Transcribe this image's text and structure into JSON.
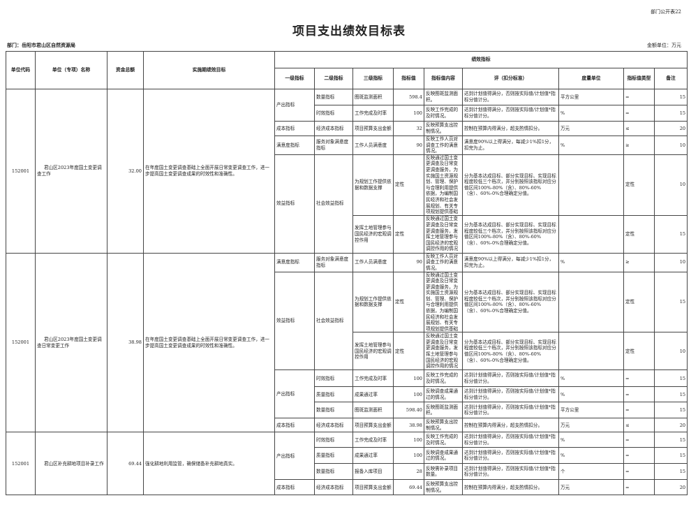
{
  "form_no": "部门公开表22",
  "title": "项目支出绩效目标表",
  "department": "部门：岳阳市君山区自然资源局",
  "amount_unit": "金额单位：万元",
  "headers": {
    "code": "单位代码",
    "name": "单位（专项）名称",
    "amount": "资金总额",
    "goal": "实施期绩效目标",
    "indicators": "绩效指标",
    "sub": [
      "一级指标",
      "二级指标",
      "三级指标",
      "指标值",
      "指标值内容",
      "评（扣分标准）",
      "度量单位",
      "指标值类型",
      "备注"
    ]
  },
  "projects": [
    {
      "code": "152001",
      "name": "君山区2023年度国土变更调查工作",
      "amount": "32.00",
      "goal": "在年度国土变更调查基础上全面开展日常变更调查工作，进一步提高国土变更调查成果的时效性和准确性。",
      "groups": [
        {
          "level1": "产出指标",
          "rows": [
            {
              "level2": "数量指标",
              "level3": "图斑监测面积",
              "value": "598.4",
              "content": "反映图斑监测面积。",
              "standard": "达到计划值得满分，否则按实际值/计划值*指标分值计分。",
              "unit": "平方公里",
              "type": "=",
              "weight": "15"
            },
            {
              "level2": "时效指标",
              "level3": "工作完成及时率",
              "value": "100",
              "content": "反映工作完成的及时情况。",
              "standard": "达到计划值得满分，否则按实际值/计划值*指标分值计分。",
              "unit": "%",
              "type": "=",
              "weight": "15"
            }
          ]
        },
        {
          "level1": "成本指标",
          "rows": [
            {
              "level2": "经济成本指标",
              "level3": "项目预算支出金额",
              "value": "32",
              "content": "反映预算支出控制情况。",
              "standard": "控制在预算内得满分，超支酌情扣分。",
              "unit": "万元",
              "type": "≤",
              "weight": "20"
            }
          ]
        },
        {
          "level1": "满意度指标",
          "rows": [
            {
              "level2": "服务对象满意度指标",
              "level3": "工作人员满意度",
              "value": "90",
              "content": "反映工作人员对调查工作的满意情况。",
              "standard": "满意度90%以上得满分，每减少1%扣1分，扣完为止。",
              "unit": "%",
              "type": "≥",
              "weight": "10"
            }
          ]
        },
        {
          "level1": "效益指标",
          "level2_span": "社会效益指标",
          "rows": [
            {
              "level3": "为规划工作提供依据和数据支撑",
              "value": "定性",
              "content": "反映通过国土变更调查及日常变更调查服务，为实施国土资源规划、管理、保护与合理利用提供依据，为编制国民经济和社会发展规划、有关专项规划提供基础",
              "standard": "分为基本达成目标、部分实现目标、实现目标程度较低三个档次，并分别按照该指标对应分值区间100%-80%（含）、80%-60%（含）、60%-0%合理确定分值。",
              "unit": "",
              "type": "定性",
              "weight": "10"
            },
            {
              "level3": "发挥土地管理参与国民经济的宏观调控作用",
              "value": "定性",
              "content": "反映通过国土变更调查及日常变更调查服务，发挥土地管理参与国民经济的宏观调控作用的情况",
              "standard": "分为基本达成目标、部分实现目标、实现目标程度较低三个档次，并分别按照该指标对应分值区间100%-80%（含）、80%-60%（含）、60%-0%合理确定分值。",
              "unit": "",
              "type": "定性",
              "weight": "15"
            }
          ]
        }
      ]
    },
    {
      "code": "152001",
      "name": "君山区2023年度国土变更调查日常变更工作",
      "amount": "38.98",
      "goal": "在年度国土变更调查基础上全面开展日常变更调查工作，进一步提高国土变更调查成果的时效性和准确性。",
      "groups": [
        {
          "level1": "满意度指标",
          "rows": [
            {
              "level2": "服务对象满意度指标",
              "level3": "工作人员满意度",
              "value": "90",
              "content": "反映工作人员对调查工作的满意情况。",
              "standard": "满意度90%以上得满分，每减少1%扣1分，扣完为止。",
              "unit": "%",
              "type": "≥",
              "weight": "10"
            }
          ]
        },
        {
          "level1": "效益指标",
          "level2_span": "社会效益指标",
          "rows": [
            {
              "level3": "为规划工作提供依据和数据支撑",
              "value": "定性",
              "content": "反映通过国土变更调查及日常变更调查服务，为实施国土资源规划、管理、保护与合理利用提供依据，为编制国民经济和社会发展规划、有关专项规划提供基础",
              "standard": "分为基本达成目标、部分实现目标、实现目标程度较低三个档次，并分别按照该指标对应分值区间100%-80%（含）、80%-60%（含）、60%-0%合理确定分值。",
              "unit": "",
              "type": "定性",
              "weight": "15"
            },
            {
              "level3": "发挥土地管理参与国民经济的宏观调控作用",
              "value": "定性",
              "content": "反映通过国土变更调查及日常变更调查服务，发挥土地管理参与国民经济的宏观调控作用的情况",
              "standard": "分为基本达成目标、部分实现目标、实现目标程度较低三个档次，并分别按照该指标对应分值区间100%-80%（含）、80%-60%（含）、60%-0%合理确定分值。",
              "unit": "",
              "type": "定性",
              "weight": "10"
            }
          ]
        },
        {
          "level1": "产出指标",
          "rows": [
            {
              "level2": "时效指标",
              "level3": "工作完成及时率",
              "value": "100",
              "content": "反映工作完成的及时情况。",
              "standard": "达到计划值得满分，否则按实际值/计划值*指标分值计分。",
              "unit": "%",
              "type": "=",
              "weight": "15"
            },
            {
              "level2": "质量指标",
              "level3": "成果通过率",
              "value": "100",
              "content": "反映调查成果通过的情况。",
              "standard": "达到计划值得满分，否则按实际值/计划值*指标分值计分。",
              "unit": "%",
              "type": "=",
              "weight": "15"
            },
            {
              "level2": "数量指标",
              "level3": "图斑监测面积",
              "value": "598.40",
              "content": "反映图斑监测面积。",
              "standard": "达到计划值得满分，否则按实际值/计划值*指标分值计分。",
              "unit": "平方公里",
              "type": "=",
              "weight": "15"
            }
          ]
        },
        {
          "level1": "成本指标",
          "rows": [
            {
              "level2": "经济成本指标",
              "level3": "项目预算支出金额",
              "value": "38.98",
              "content": "反映预算支出控制情况。",
              "standard": "控制在预算内得满分，超支酌情扣分。",
              "unit": "万元",
              "type": "≤",
              "weight": "20"
            }
          ]
        }
      ]
    },
    {
      "code": "152001",
      "name": "君山区补充耕地项目补录工作",
      "amount": "69.44",
      "goal": "强化耕地利用监管，确保储备补充耕地真实。",
      "groups": [
        {
          "level1": "产出指标",
          "rows": [
            {
              "level2": "时效指标",
              "level3": "工作完成及时率",
              "value": "100",
              "content": "反映工作完成的及时情况。",
              "standard": "达到计划值得满分，否则按实际值/计划值*指标分值计分。",
              "unit": "%",
              "type": "=",
              "weight": "15"
            },
            {
              "level2": "质量指标",
              "level3": "成果通过率",
              "value": "100",
              "content": "反映调查成果通过的情况。",
              "standard": "达到计划值得满分，否则按实际值/计划值*指标分值计分。",
              "unit": "%",
              "type": "=",
              "weight": "15"
            },
            {
              "level2": "数量指标",
              "level3": "报备入库项目",
              "value": "28",
              "content": "反映需补录项目数量。",
              "standard": "达到计划值得满分，否则按实际值/计划值*指标分值计分。",
              "unit": "个",
              "type": "=",
              "weight": "15"
            }
          ]
        },
        {
          "level1": "成本指标",
          "rows": [
            {
              "level2": "经济成本指标",
              "level3": "项目预算支出金额",
              "value": "69.44",
              "content": "反映预算支出控制情况。",
              "standard": "控制在预算内得满分，超支酌情扣分。",
              "unit": "万元",
              "type": "=",
              "weight": "20"
            }
          ]
        }
      ]
    }
  ]
}
